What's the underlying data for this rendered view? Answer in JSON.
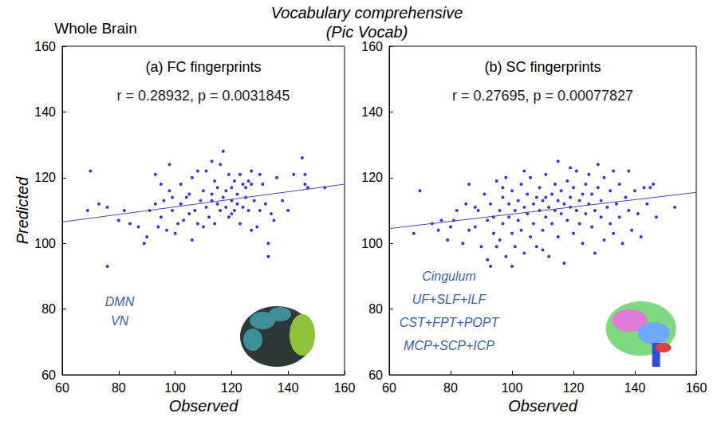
{
  "header": {
    "left_label": "Whole Brain",
    "title": "Vocabulary comprehensive",
    "subtitle": "(Pic Vocab)"
  },
  "chart_data": [
    {
      "type": "scatter",
      "title": "(a) FC fingerprints",
      "annotation": "r = 0.28932, p = 0.0031845",
      "region_labels": [
        "DMN",
        "VN"
      ],
      "xlabel": "Observed",
      "ylabel": "Predicted",
      "xlim": [
        60,
        160
      ],
      "ylim": [
        60,
        160
      ],
      "xticks": [
        60,
        80,
        100,
        120,
        140,
        160
      ],
      "yticks": [
        60,
        80,
        100,
        120,
        140,
        160
      ],
      "grid": false,
      "color": "#0000ee",
      "marker": "circle",
      "x": [
        69,
        70,
        73,
        76,
        76,
        80,
        82,
        84,
        87,
        89,
        90,
        91,
        93,
        93,
        94,
        95,
        96,
        97,
        98,
        98,
        99,
        100,
        101,
        102,
        102,
        103,
        104,
        105,
        105,
        106,
        106,
        107,
        108,
        109,
        110,
        110,
        111,
        111,
        112,
        113,
        113,
        114,
        114,
        115,
        115,
        116,
        116,
        117,
        117,
        118,
        118,
        119,
        119,
        120,
        120,
        121,
        121,
        122,
        122,
        123,
        123,
        124,
        124,
        125,
        125,
        126,
        126,
        127,
        127,
        128,
        129,
        130,
        131,
        132,
        133,
        133,
        134,
        135,
        136,
        138,
        140,
        142,
        145,
        146,
        146,
        147,
        153,
        130,
        113,
        120,
        127,
        99,
        95,
        108
      ],
      "values": [
        110,
        122,
        112,
        93,
        111,
        107,
        110,
        106,
        105,
        100,
        102,
        110,
        121,
        112,
        105,
        108,
        113,
        104,
        124,
        116,
        110,
        103,
        106,
        118,
        112,
        107,
        114,
        115,
        109,
        120,
        101,
        110,
        106,
        113,
        116,
        105,
        122,
        111,
        108,
        115,
        113,
        119,
        106,
        112,
        117,
        124,
        110,
        114,
        128,
        111,
        116,
        121,
        108,
        113,
        117,
        110,
        119,
        115,
        112,
        106,
        121,
        111,
        118,
        114,
        117,
        110,
        119,
        104,
        118,
        113,
        105,
        110,
        118,
        112,
        100,
        96,
        109,
        107,
        120,
        113,
        110,
        121,
        126,
        118,
        121,
        117,
        117,
        121,
        125,
        109,
        122,
        114,
        118,
        122
      ],
      "fit": {
        "type": "line",
        "color": "#4646b4",
        "x": [
          60,
          160
        ],
        "values": [
          106.5,
          118
        ]
      }
    },
    {
      "type": "scatter",
      "title": "(b) SC fingerprints",
      "annotation": "r = 0.27695, p = 0.00077827",
      "region_labels": [
        "Cingulum",
        "UF+SLF+ILF",
        "CST+FPT+POPT",
        "MCP+SCP+ICP"
      ],
      "xlabel": "Observed",
      "xlim": [
        60,
        160
      ],
      "ylim": [
        60,
        160
      ],
      "xticks": [
        60,
        80,
        100,
        120,
        140,
        160
      ],
      "yticks": [
        60,
        80,
        100,
        120,
        140,
        160
      ],
      "grid": false,
      "color": "#0000ee",
      "marker": "circle",
      "x": [
        68,
        70,
        74,
        76,
        77,
        79,
        80,
        81,
        82,
        84,
        85,
        86,
        86,
        88,
        88,
        89,
        90,
        91,
        92,
        92,
        93,
        94,
        94,
        95,
        95,
        96,
        96,
        97,
        97,
        98,
        98,
        99,
        99,
        100,
        100,
        101,
        101,
        102,
        102,
        103,
        103,
        104,
        104,
        105,
        105,
        106,
        106,
        107,
        107,
        108,
        108,
        109,
        109,
        110,
        110,
        111,
        111,
        112,
        112,
        113,
        113,
        114,
        114,
        115,
        115,
        115,
        116,
        116,
        117,
        117,
        118,
        118,
        119,
        119,
        120,
        120,
        121,
        121,
        122,
        122,
        123,
        123,
        124,
        124,
        125,
        125,
        126,
        126,
        127,
        127,
        128,
        129,
        129,
        130,
        130,
        131,
        132,
        132,
        133,
        134,
        135,
        135,
        136,
        137,
        138,
        139,
        140,
        141,
        142,
        143,
        144,
        145,
        146,
        147,
        153,
        111,
        104,
        119,
        128,
        133,
        100,
        93,
        138,
        110,
        97
      ],
      "values": [
        103,
        116,
        106,
        104,
        107,
        101,
        105,
        107,
        110,
        100,
        112,
        104,
        118,
        111,
        105,
        110,
        99,
        115,
        107,
        95,
        112,
        108,
        103,
        119,
        99,
        101,
        110,
        114,
        106,
        120,
        96,
        108,
        112,
        103,
        116,
        110,
        99,
        113,
        107,
        118,
        104,
        111,
        97,
        115,
        109,
        102,
        120,
        112,
        106,
        114,
        99,
        110,
        117,
        104,
        113,
        108,
        121,
        111,
        96,
        115,
        106,
        118,
        110,
        113,
        125,
        102,
        109,
        116,
        112,
        94,
        119,
        107,
        111,
        114,
        117,
        103,
        110,
        122,
        113,
        106,
        115,
        100,
        118,
        109,
        112,
        121,
        105,
        115,
        110,
        97,
        117,
        108,
        113,
        101,
        120,
        111,
        116,
        106,
        103,
        112,
        118,
        108,
        100,
        114,
        110,
        104,
        116,
        109,
        102,
        117,
        112,
        117,
        118,
        108,
        111,
        114,
        122,
        123,
        124,
        122,
        93,
        93,
        122,
        98,
        117
      ],
      "fit": {
        "type": "line",
        "color": "#4646b4",
        "x": [
          60,
          160
        ],
        "values": [
          104.5,
          115.5
        ]
      }
    }
  ]
}
